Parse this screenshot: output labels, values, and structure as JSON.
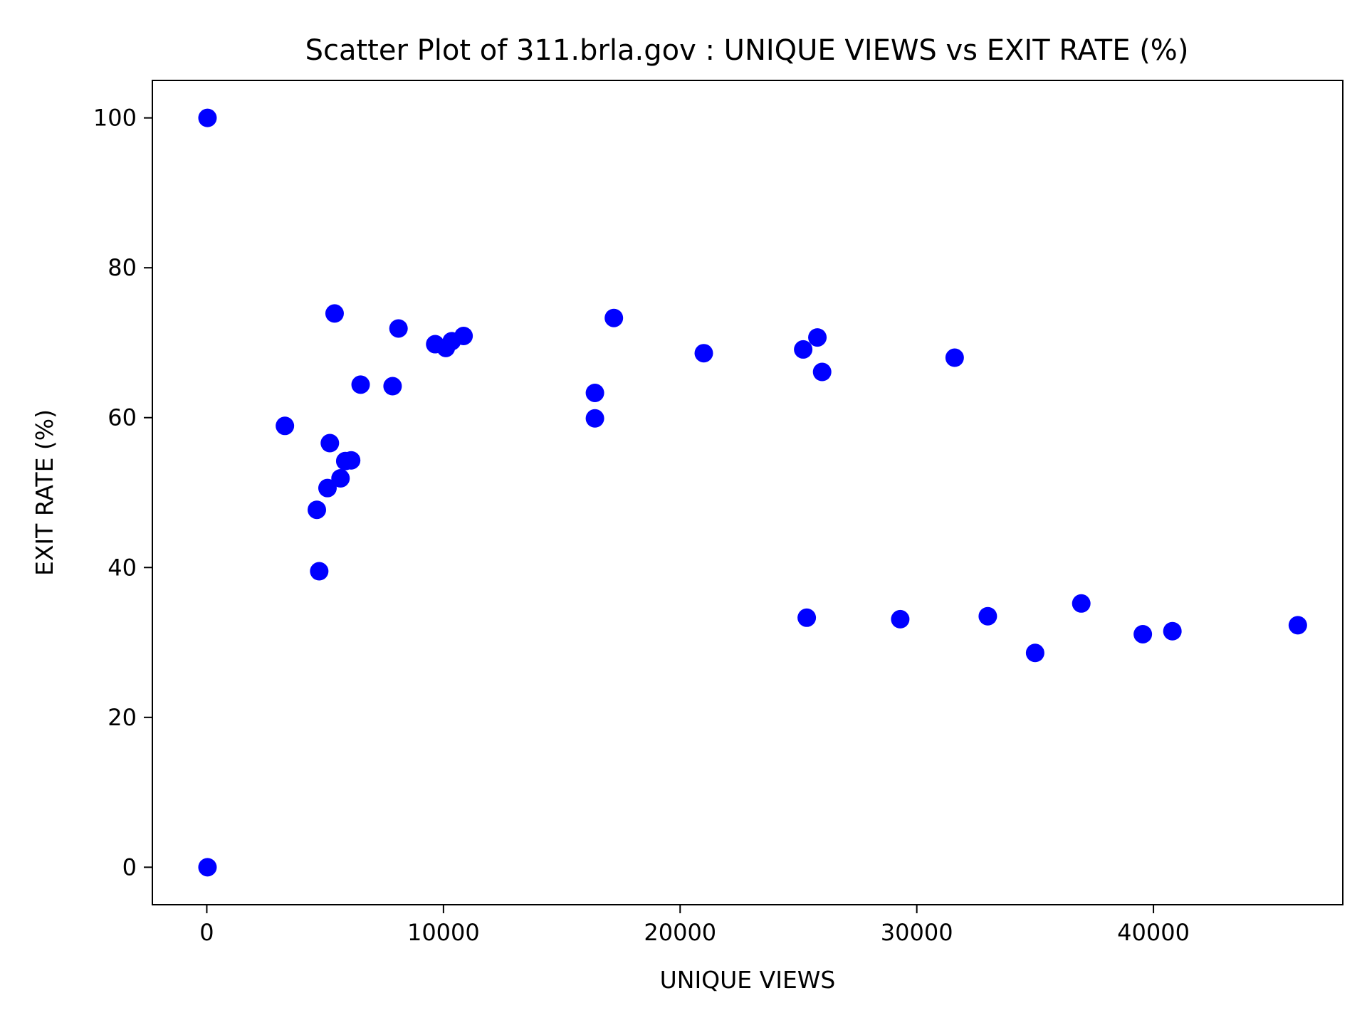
{
  "chart_data": {
    "type": "scatter",
    "title": "Scatter Plot of 311.brla.gov : UNIQUE VIEWS vs EXIT RATE (%)",
    "xlabel": "UNIQUE VIEWS",
    "ylabel": "EXIT RATE (%)",
    "xlim": [
      -2300,
      48000
    ],
    "ylim": [
      -5,
      105
    ],
    "xticks": [
      0,
      10000,
      20000,
      30000,
      40000
    ],
    "yticks": [
      0,
      20,
      40,
      60,
      80,
      100
    ],
    "grid": false,
    "legend": "none",
    "marker_color": "#0000ff",
    "points": [
      {
        "x": 30,
        "y": 100
      },
      {
        "x": 30,
        "y": 0
      },
      {
        "x": 3300,
        "y": 58.9
      },
      {
        "x": 4650,
        "y": 47.7
      },
      {
        "x": 4750,
        "y": 39.5
      },
      {
        "x": 5100,
        "y": 50.6
      },
      {
        "x": 5200,
        "y": 56.6
      },
      {
        "x": 5400,
        "y": 73.9
      },
      {
        "x": 5650,
        "y": 51.9
      },
      {
        "x": 5850,
        "y": 54.2
      },
      {
        "x": 6100,
        "y": 54.3
      },
      {
        "x": 6500,
        "y": 64.4
      },
      {
        "x": 7850,
        "y": 64.2
      },
      {
        "x": 8100,
        "y": 71.9
      },
      {
        "x": 9650,
        "y": 69.8
      },
      {
        "x": 10100,
        "y": 69.3
      },
      {
        "x": 10350,
        "y": 70.2
      },
      {
        "x": 10850,
        "y": 70.9
      },
      {
        "x": 16400,
        "y": 63.3
      },
      {
        "x": 16400,
        "y": 59.9
      },
      {
        "x": 17200,
        "y": 73.3
      },
      {
        "x": 21000,
        "y": 68.6
      },
      {
        "x": 25200,
        "y": 69.1
      },
      {
        "x": 25350,
        "y": 33.3
      },
      {
        "x": 25800,
        "y": 70.7
      },
      {
        "x": 26000,
        "y": 66.1
      },
      {
        "x": 29300,
        "y": 33.1
      },
      {
        "x": 31600,
        "y": 68.0
      },
      {
        "x": 33000,
        "y": 33.5
      },
      {
        "x": 35000,
        "y": 28.6
      },
      {
        "x": 36950,
        "y": 35.2
      },
      {
        "x": 39550,
        "y": 31.1
      },
      {
        "x": 40800,
        "y": 31.5
      },
      {
        "x": 46100,
        "y": 32.3
      }
    ]
  }
}
